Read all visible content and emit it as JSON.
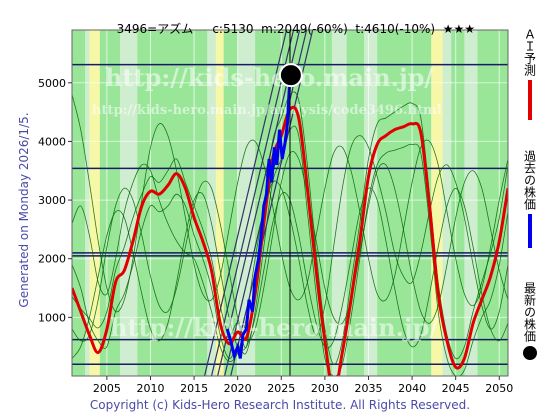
{
  "header": {
    "code": "3496=アズム",
    "current": "c:5130",
    "min": "m:2049(-60%)",
    "target": "t:4610(-10%)",
    "rating": "★★★"
  },
  "footer": {
    "copyright": "Copyright (c) Kids-Hero Research Institute. All Rights Reserved.",
    "generated": "Generated on Monday 2026/1/5."
  },
  "watermark": {
    "line1": "http://kids-hero.main.jp/",
    "line2": "http://kids-hero.main.jp/analysis/code3496.html",
    "line3": "http://kids-hero.main.jp/"
  },
  "legend": {
    "ai_forecast": "ＡＩ予測",
    "past_price": "過去の株価",
    "latest_price": "最新の株価"
  },
  "colors": {
    "ai_forecast": "#e00000",
    "past_price": "#0000ee",
    "latest_price": "#000000",
    "band_green": "#99e699",
    "band_yellow": "#f7f7a8",
    "grid_navy": "#1a1a66",
    "thin_green": "#006400"
  },
  "chart_data": {
    "type": "line",
    "title": "3496=アズム     c:5130  m:2049(-60%)  t:4610(-10%)  ★★★",
    "xlim": [
      2001,
      2051
    ],
    "ylim": [
      0,
      5900
    ],
    "x_ticks": [
      2005,
      2010,
      2015,
      2020,
      2025,
      2030,
      2035,
      2040,
      2045,
      2050
    ],
    "y_ticks": [
      1000,
      2000,
      3000,
      4000,
      5000
    ],
    "horizontal_levels": [
      200,
      620,
      2049,
      2100,
      3540,
      5310
    ],
    "current_year_marker": 2026,
    "latest_point": {
      "x": 2026.1,
      "y": 5130
    },
    "series": [
      {
        "name": "ＡＩ予測",
        "x": [
          2001,
          2002,
          2003,
          2004,
          2005,
          2006,
          2007,
          2008,
          2009,
          2010,
          2011,
          2012,
          2013,
          2014,
          2015,
          2016,
          2017,
          2018,
          2019,
          2020,
          2021,
          2022,
          2023,
          2024,
          2025,
          2026,
          2027,
          2028,
          2029,
          2030,
          2031,
          2032,
          2033,
          2034,
          2035,
          2036,
          2037,
          2038,
          2039,
          2040,
          2041,
          2042,
          2043,
          2044,
          2045,
          2046,
          2047,
          2048,
          2049,
          2050,
          2051
        ],
        "values": [
          1500,
          1100,
          700,
          400,
          800,
          1600,
          1800,
          2300,
          2900,
          3150,
          3100,
          3250,
          3450,
          3200,
          2700,
          2300,
          1800,
          900,
          550,
          750,
          650,
          1400,
          2600,
          3700,
          4100,
          4550,
          4400,
          3200,
          1800,
          600,
          -300,
          400,
          1300,
          2300,
          3400,
          3950,
          4100,
          4200,
          4250,
          4300,
          4150,
          2900,
          1400,
          600,
          150,
          300,
          900,
          1300,
          1700,
          2300,
          3200
        ]
      },
      {
        "name": "過去の株価",
        "x": [
          2018.8,
          2019.2,
          2019.6,
          2020.0,
          2020.3,
          2020.6,
          2021.0,
          2021.3,
          2021.7,
          2022.0,
          2022.4,
          2022.7,
          2023.0,
          2023.3,
          2023.6,
          2023.9,
          2024.2,
          2024.5,
          2024.8,
          2025.1,
          2025.4,
          2025.7,
          2026.0
        ],
        "values": [
          800,
          600,
          350,
          500,
          300,
          700,
          800,
          1300,
          1100,
          1700,
          2000,
          2400,
          2900,
          3100,
          3700,
          3300,
          3900,
          3600,
          4200,
          3700,
          3950,
          4300,
          5130
        ]
      }
    ],
    "thin_lines": [
      [
        1350,
        1150,
        980,
        820,
        1100,
        1800,
        2200,
        2700,
        3100,
        3400,
        3300,
        3500,
        3700,
        3300,
        2900,
        2500,
        2000,
        1200,
        700,
        900,
        500,
        1600,
        2900,
        4000,
        4400,
        4800,
        4700,
        3600,
        2100,
        800,
        200,
        600,
        1600,
        2600,
        3700,
        4300,
        4400,
        4500,
        4600,
        4650,
        4400,
        3100,
        1600,
        700,
        300,
        500,
        1100,
        1600,
        2100,
        2700,
        3600
      ],
      [
        1900,
        1500,
        900,
        600,
        500,
        1100,
        1400,
        1900,
        2500,
        2900,
        2800,
        2900,
        3100,
        2900,
        2400,
        2000,
        1500,
        700,
        300,
        500,
        400,
        1100,
        2200,
        3300,
        3700,
        4200,
        4100,
        2800,
        1400,
        300,
        0,
        200,
        1000,
        2000,
        3000,
        3600,
        3800,
        3850,
        3900,
        3950,
        3800,
        2600,
        1100,
        300,
        0,
        100,
        600,
        1000,
        1300,
        1900,
        2800
      ],
      [
        2600,
        2900,
        2400,
        1600,
        1400,
        2000,
        2800,
        3300,
        3600,
        3500,
        3000,
        2600,
        2300,
        2100,
        2000,
        1600,
        1100,
        500,
        250,
        400,
        1000,
        2000,
        2800,
        3300,
        3200,
        2700,
        2000,
        1200,
        700,
        1200,
        2200,
        3200,
        3900,
        4100,
        3900,
        3400,
        2800,
        2100,
        1700,
        1600,
        2100,
        2800,
        3400,
        3600,
        3300,
        2700,
        1900,
        1200,
        800,
        1100,
        1900
      ],
      [
        800,
        600,
        700,
        1300,
        2200,
        2900,
        3200,
        3000,
        2400,
        1700,
        1200,
        1100,
        1500,
        2200,
        2900,
        3300,
        3200,
        2600,
        1800,
        1000,
        600,
        800,
        1500,
        2400,
        3300,
        3800,
        3700,
        3100,
        2300,
        1500,
        1000,
        900,
        1300,
        2100,
        2900,
        3500,
        3600,
        3200,
        2500,
        1700,
        1100,
        900,
        1200,
        1900,
        2700,
        3300,
        3500,
        3200,
        2500,
        1800,
        1300
      ],
      [
        4800,
        4200,
        3300,
        2300,
        1500,
        1100,
        1300,
        2000,
        3000,
        3900,
        4300,
        4100,
        3500,
        2700,
        1900,
        1400,
        1300,
        1700,
        2500,
        3300,
        3900,
        4000,
        3600,
        2900,
        2100,
        1500,
        1300,
        1600,
        2400,
        3200,
        3800,
        3900,
        3500,
        2800,
        2000,
        1400,
        1300,
        1700,
        2500,
        3300,
        3900,
        4000,
        3600,
        2800,
        2000,
        1400,
        1200,
        1500,
        2200,
        3000,
        3700
      ],
      [
        300,
        500,
        1000,
        1700,
        2400,
        2800,
        2700,
        2100,
        1400,
        800,
        600,
        900,
        1600,
        2400,
        3000,
        3100,
        2600,
        1800,
        1000,
        500,
        500,
        1000,
        1800,
        2600,
        3100,
        3000,
        2400,
        1600,
        900,
        500,
        600,
        1200,
        2000,
        2800,
        3200,
        3000,
        2300,
        1500,
        800,
        500,
        700,
        1400,
        2200,
        2900,
        3200,
        2900,
        2200,
        1400,
        800,
        600,
        900
      ]
    ],
    "diagonal_channels": [
      {
        "x0": 2016.2,
        "y0": 0,
        "x1": 2025.6,
        "y1": 5900
      },
      {
        "x0": 2017.0,
        "y0": 0,
        "x1": 2026.4,
        "y1": 5900
      },
      {
        "x0": 2017.7,
        "y0": 0,
        "x1": 2027.1,
        "y1": 5900
      },
      {
        "x0": 2018.5,
        "y0": 0,
        "x1": 2027.9,
        "y1": 5900
      },
      {
        "x0": 2019.2,
        "y0": 0,
        "x1": 2028.6,
        "y1": 5900
      }
    ],
    "bands": [
      {
        "from": 2001,
        "to": 2002.5,
        "kind": "green"
      },
      {
        "from": 2003.0,
        "to": 2004.2,
        "kind": "yellow"
      },
      {
        "from": 2004.2,
        "to": 2006.5,
        "kind": "green"
      },
      {
        "from": 2008.5,
        "to": 2016.5,
        "kind": "green"
      },
      {
        "from": 2017.5,
        "to": 2018.4,
        "kind": "yellow"
      },
      {
        "from": 2018.4,
        "to": 2020.0,
        "kind": "green"
      },
      {
        "from": 2022.0,
        "to": 2030.8,
        "kind": "green"
      },
      {
        "from": 2032.5,
        "to": 2034.5,
        "kind": "green"
      },
      {
        "from": 2036.0,
        "to": 2042.2,
        "kind": "green"
      },
      {
        "from": 2042.2,
        "to": 2043.5,
        "kind": "yellow"
      },
      {
        "from": 2044.5,
        "to": 2046.0,
        "kind": "green"
      },
      {
        "from": 2047.5,
        "to": 2051,
        "kind": "green"
      }
    ]
  }
}
